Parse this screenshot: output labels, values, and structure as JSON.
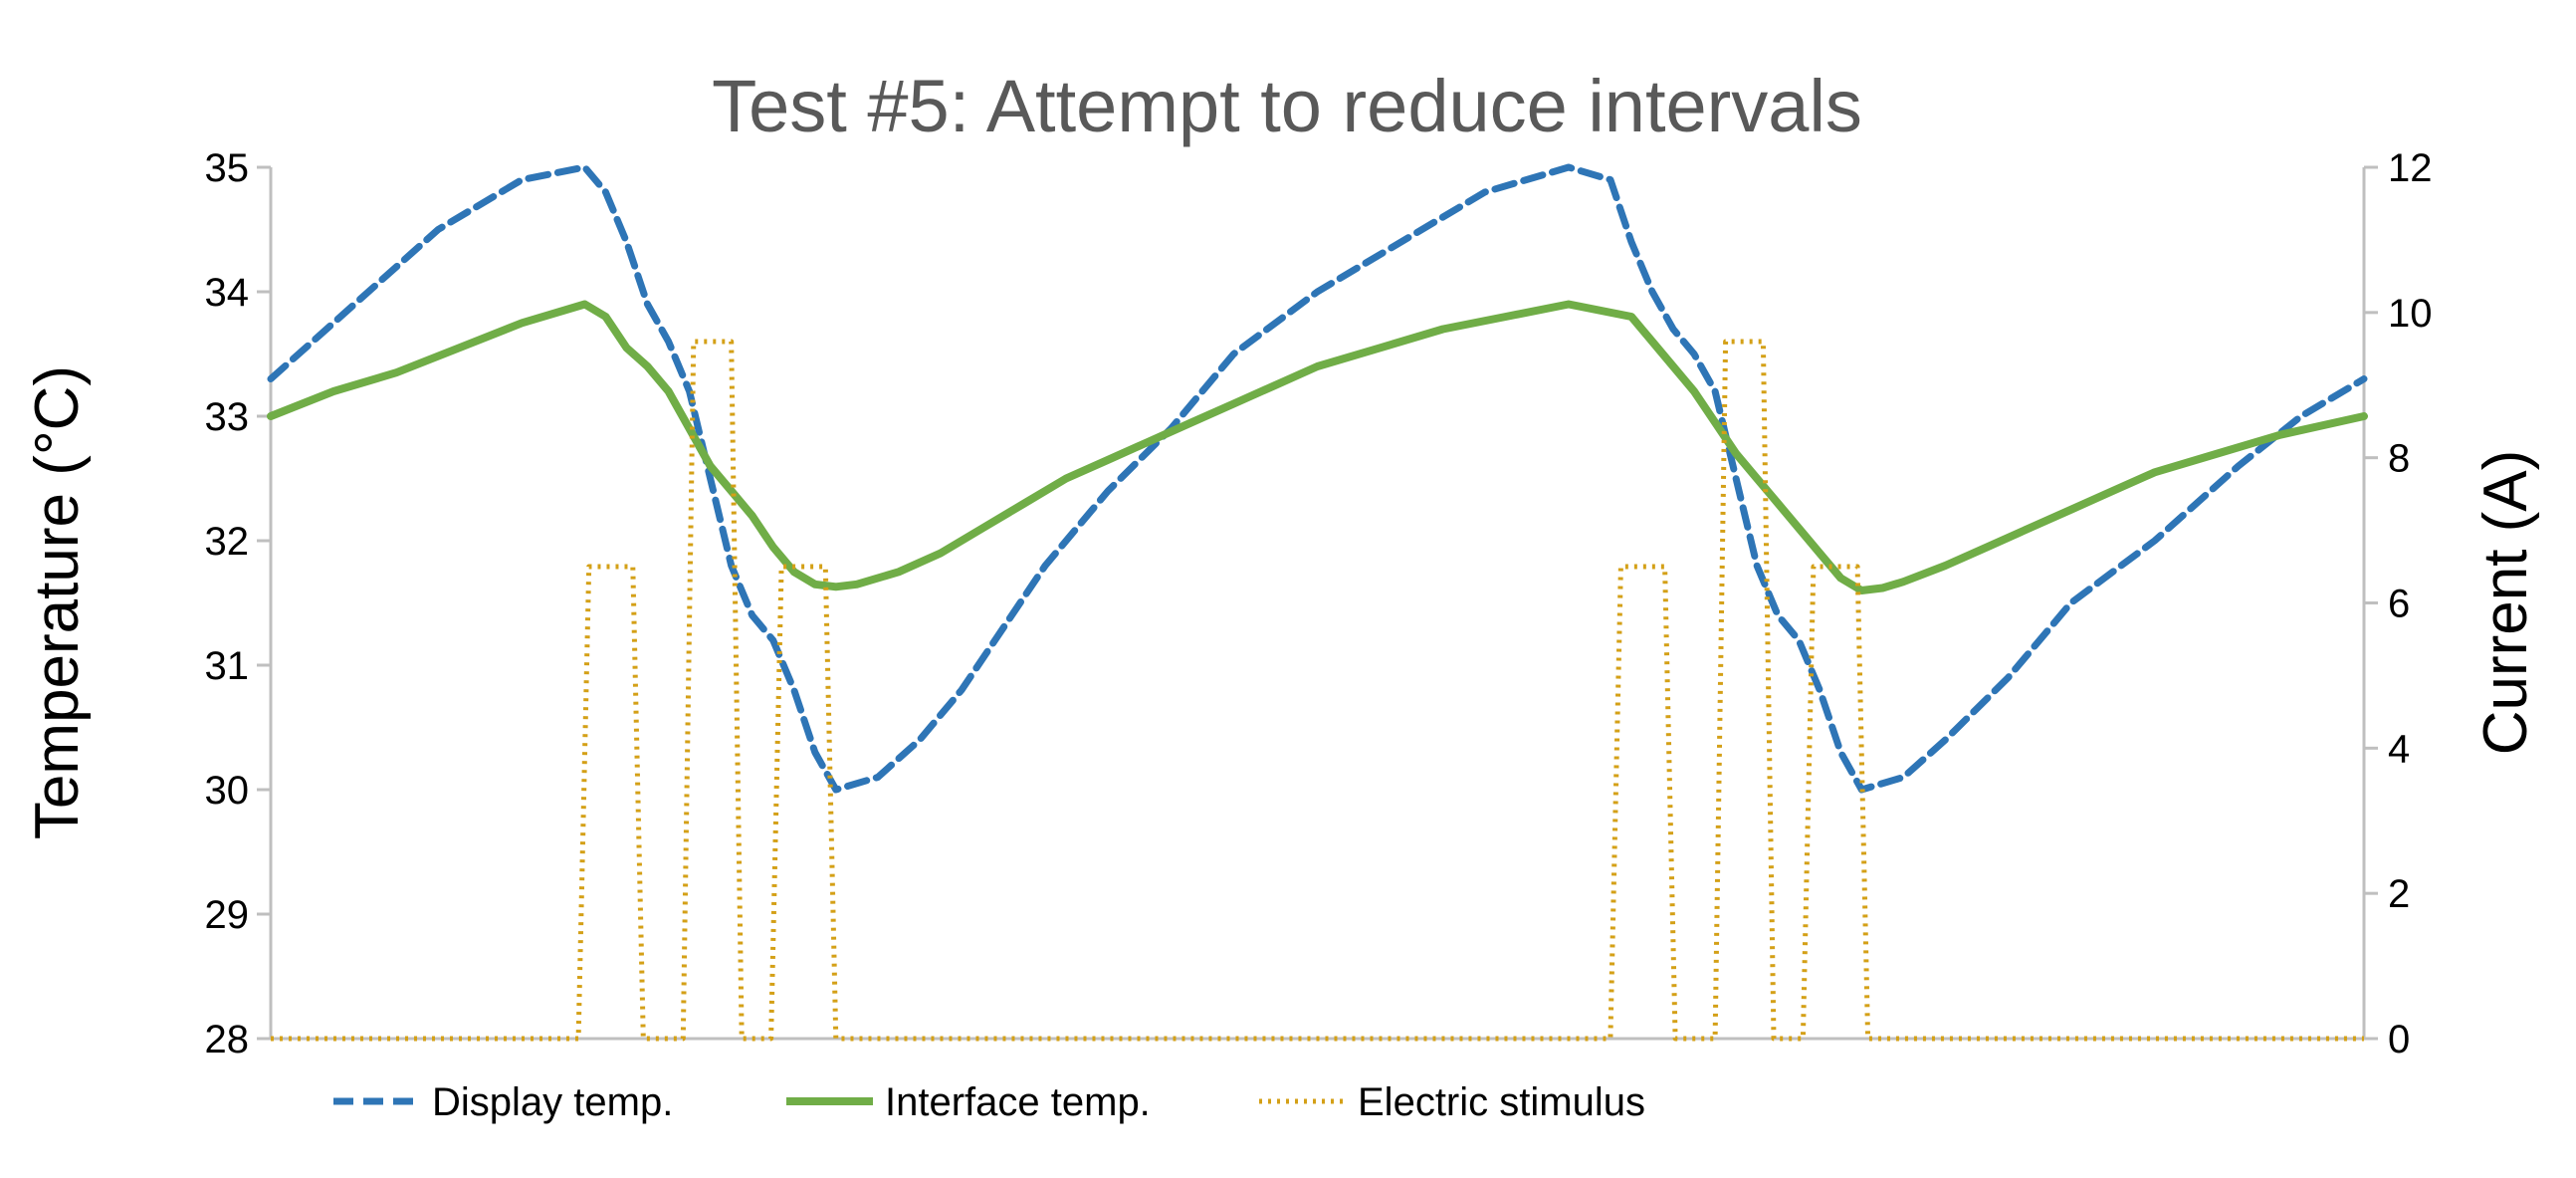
{
  "colors": {
    "display": "#2e75b6",
    "interface": "#70ad47",
    "stimulus": "#d4a017",
    "axis": "#bfbfbf",
    "title": "#595959"
  },
  "chart_data": {
    "type": "line",
    "title": "Test #5: Attempt to reduce intervals",
    "ylabel": "Temperature (°C)",
    "y2label": "Current (A)",
    "ylim": [
      28,
      35
    ],
    "y2lim": [
      0,
      12
    ],
    "yticks": [
      "28",
      "29",
      "30",
      "31",
      "32",
      "33",
      "34",
      "35"
    ],
    "y2ticks": [
      "0",
      "2",
      "4",
      "6",
      "8",
      "10",
      "12"
    ],
    "xlim": [
      0,
      100
    ],
    "grid": false,
    "legend_position": "bottom",
    "series": [
      {
        "name": "Display temp.",
        "axis": "left",
        "style": "dashed",
        "x": [
          0,
          4,
          8,
          12,
          15,
          16,
          17,
          18,
          19,
          20,
          21,
          22,
          23,
          24,
          25,
          26,
          27,
          29,
          31,
          33,
          35,
          37,
          40,
          43,
          46,
          50,
          54,
          58,
          62,
          64,
          65,
          66,
          67,
          68,
          69,
          70,
          71,
          72,
          73,
          74,
          75,
          76,
          78,
          80,
          83,
          86,
          90,
          94,
          97,
          100
        ],
        "values": [
          33.3,
          33.9,
          34.5,
          34.9,
          35.0,
          34.8,
          34.4,
          33.9,
          33.6,
          33.2,
          32.5,
          31.8,
          31.4,
          31.2,
          30.8,
          30.3,
          30.0,
          30.1,
          30.4,
          30.8,
          31.3,
          31.8,
          32.4,
          32.9,
          33.5,
          34.0,
          34.4,
          34.8,
          35.0,
          34.9,
          34.4,
          34.0,
          33.7,
          33.5,
          33.2,
          32.5,
          31.8,
          31.4,
          31.2,
          30.8,
          30.3,
          30.0,
          30.1,
          30.4,
          30.9,
          31.5,
          32.0,
          32.6,
          33.0,
          33.3
        ]
      },
      {
        "name": "Interface temp.",
        "axis": "left",
        "style": "solid",
        "x": [
          0,
          3,
          6,
          9,
          12,
          15,
          16,
          17,
          18,
          19,
          20,
          21,
          22,
          23,
          24,
          25,
          26,
          27,
          28,
          30,
          32,
          34,
          36,
          38,
          40,
          42,
          44,
          46,
          48,
          50,
          53,
          56,
          59,
          62,
          65,
          66,
          67,
          68,
          69,
          70,
          71,
          72,
          73,
          74,
          75,
          76,
          77,
          78,
          80,
          82,
          84,
          86,
          88,
          90,
          93,
          96,
          100
        ],
        "values": [
          33.0,
          33.2,
          33.35,
          33.55,
          33.75,
          33.9,
          33.8,
          33.55,
          33.4,
          33.2,
          32.9,
          32.6,
          32.4,
          32.2,
          31.95,
          31.75,
          31.65,
          31.63,
          31.65,
          31.75,
          31.9,
          32.1,
          32.3,
          32.5,
          32.65,
          32.8,
          32.95,
          33.1,
          33.25,
          33.4,
          33.55,
          33.7,
          33.8,
          33.9,
          33.8,
          33.6,
          33.4,
          33.2,
          32.95,
          32.7,
          32.5,
          32.3,
          32.1,
          31.9,
          31.7,
          31.6,
          31.62,
          31.67,
          31.8,
          31.95,
          32.1,
          32.25,
          32.4,
          32.55,
          32.7,
          32.85,
          33.0
        ]
      },
      {
        "name": "Electric stimulus",
        "axis": "right",
        "style": "dotted",
        "x": [
          0,
          14.7,
          15.2,
          17.3,
          17.8,
          19.7,
          20.2,
          22.0,
          22.5,
          23.9,
          24.4,
          26.5,
          27.0,
          64.0,
          64.5,
          66.6,
          67.1,
          69.0,
          69.5,
          71.3,
          71.8,
          73.2,
          73.7,
          75.8,
          76.3,
          100
        ],
        "values": [
          0,
          0,
          6.5,
          6.5,
          0,
          0,
          9.6,
          9.6,
          0,
          0,
          6.5,
          6.5,
          0,
          0,
          6.5,
          6.5,
          0,
          0,
          9.6,
          9.6,
          0,
          0,
          6.5,
          6.5,
          0,
          0
        ]
      }
    ]
  }
}
